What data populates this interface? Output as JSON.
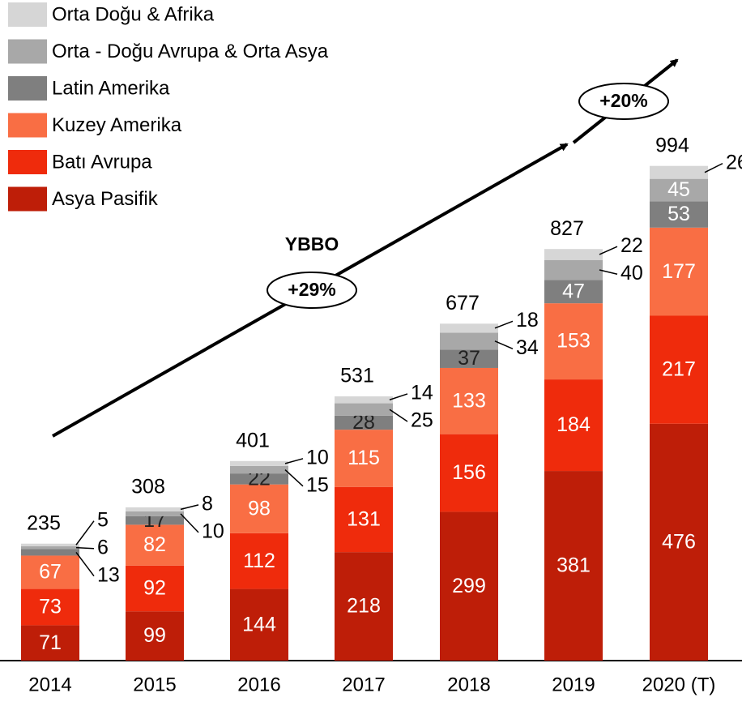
{
  "chart_data": {
    "type": "stacked_bar",
    "categories": [
      "2014",
      "2015",
      "2016",
      "2017",
      "2018",
      "2019",
      "2020 (T)"
    ],
    "series": [
      {
        "name": "Asya Pasifik",
        "color": "#be1e08",
        "values": [
          71,
          99,
          144,
          218,
          299,
          381,
          476
        ]
      },
      {
        "name": "Batı Avrupa",
        "color": "#ef2b0c",
        "values": [
          73,
          92,
          112,
          131,
          156,
          184,
          217
        ]
      },
      {
        "name": "Kuzey Amerika",
        "color": "#f96e44",
        "values": [
          67,
          82,
          98,
          115,
          133,
          153,
          177
        ]
      },
      {
        "name": "Latin Amerika",
        "color": "#7f7f7f",
        "values": [
          13,
          17,
          22,
          28,
          37,
          47,
          53
        ]
      },
      {
        "name": "Orta - Doğu Avrupa & Orta Asya",
        "color": "#a8a8a8",
        "values": [
          6,
          10,
          15,
          25,
          34,
          40,
          45
        ]
      },
      {
        "name": "Orta Doğu & Afrika",
        "color": "#d6d6d6",
        "values": [
          5,
          8,
          10,
          14,
          18,
          22,
          26
        ]
      }
    ],
    "totals": [
      235,
      308,
      401,
      531,
      677,
      827,
      994
    ],
    "annotations": {
      "cagr_label": "YBBO",
      "cagr_1": "+29%",
      "cagr_2": "+20%"
    }
  }
}
